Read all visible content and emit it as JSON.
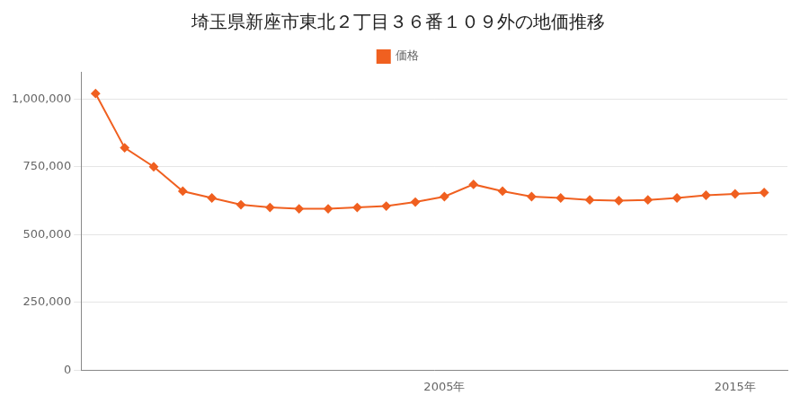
{
  "chart_data": {
    "type": "line",
    "title": "埼玉県新座市東北２丁目３６番１０９外の地価推移",
    "x": [
      1993,
      1994,
      1995,
      1996,
      1997,
      1998,
      1999,
      2000,
      2001,
      2002,
      2003,
      2004,
      2005,
      2006,
      2007,
      2008,
      2009,
      2010,
      2011,
      2012,
      2013,
      2014,
      2015,
      2016
    ],
    "series": [
      {
        "name": "価格",
        "color": "#F06020",
        "marker": "diamond",
        "values": [
          1020000,
          820000,
          750000,
          660000,
          635000,
          610000,
          600000,
          595000,
          595000,
          600000,
          605000,
          620000,
          640000,
          685000,
          660000,
          640000,
          635000,
          628000,
          625000,
          628000,
          635000,
          645000,
          650000,
          655000
        ]
      }
    ],
    "xlim": [
      1992.5,
      2016.8
    ],
    "xticks": [
      {
        "value": 2005,
        "label": "2005年"
      },
      {
        "value": 2015,
        "label": "2015年"
      }
    ],
    "ylim": [
      0,
      1100000
    ],
    "yticks": [
      0,
      {
        "value": 250000,
        "label": "250,000"
      },
      {
        "value": 500000,
        "label": "500,000"
      },
      {
        "value": 750000,
        "label": "750,000"
      },
      {
        "value": 1000000,
        "label": "1,000,000"
      }
    ],
    "grid": "y",
    "legend": "top"
  }
}
